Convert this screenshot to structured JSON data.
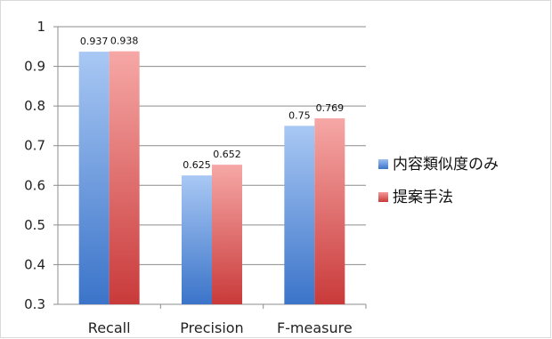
{
  "chart_data": {
    "type": "bar",
    "categories": [
      "Recall",
      "Precision",
      "F-measure"
    ],
    "series": [
      {
        "name": "内容類似度のみ",
        "values": [
          0.937,
          0.625,
          0.75
        ],
        "labels": [
          "0.937",
          "0.625",
          "0.75"
        ],
        "color": "#4a84d6"
      },
      {
        "name": "提案手法",
        "values": [
          0.938,
          0.652,
          0.769
        ],
        "labels": [
          "0.938",
          "0.652",
          "0.769"
        ],
        "color": "#d94a4a"
      }
    ],
    "ylim": [
      0.3,
      1.0
    ],
    "yticks": [
      "0.3",
      "0.4",
      "0.5",
      "0.6",
      "0.7",
      "0.8",
      "0.9",
      "1"
    ],
    "grid": true,
    "legend_position": "right",
    "title": "",
    "xlabel": "",
    "ylabel": ""
  }
}
